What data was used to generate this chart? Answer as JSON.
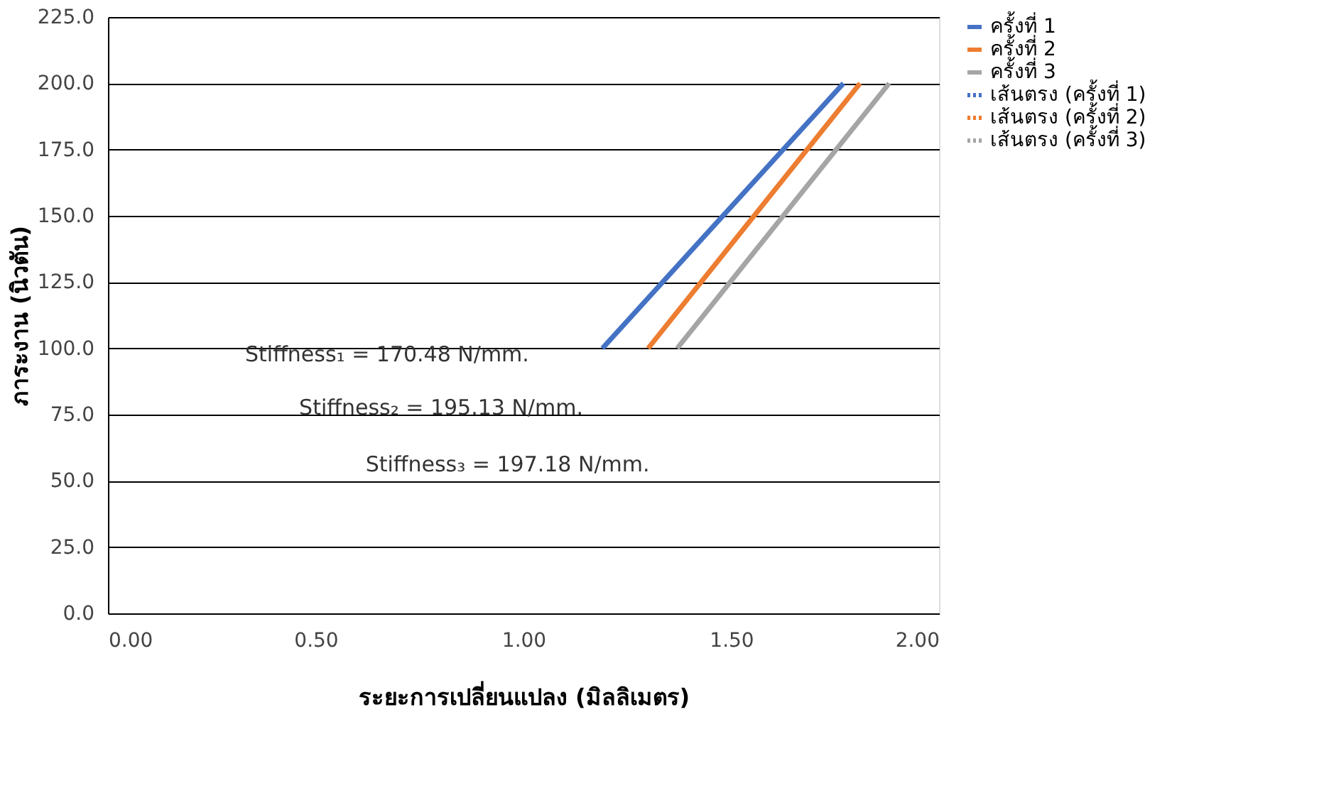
{
  "chart_data": {
    "type": "line",
    "xlabel": "ระยะการเปลี่ยนแปลง (มิลลิเมตร)",
    "ylabel": "ภาระงาน (นิวตัน)",
    "xlim": [
      0,
      2
    ],
    "xticks": [
      {
        "value": 0,
        "label": "0.00"
      },
      {
        "value": 0.5,
        "label": "0.50"
      },
      {
        "value": 1,
        "label": "1.00"
      },
      {
        "value": 1.5,
        "label": "1.50"
      },
      {
        "value": 2,
        "label": "2.00"
      }
    ],
    "ylim": [
      0,
      225
    ],
    "yticks": [
      {
        "value": 0,
        "label": "0.0"
      },
      {
        "value": 25,
        "label": "25.0"
      },
      {
        "value": 50,
        "label": "50.0"
      },
      {
        "value": 75,
        "label": "75.0"
      },
      {
        "value": 100,
        "label": "100.0"
      },
      {
        "value": 125,
        "label": "125.0"
      },
      {
        "value": 150,
        "label": "150.0"
      },
      {
        "value": 175,
        "label": "175.0"
      },
      {
        "value": 200,
        "label": "200.0"
      },
      {
        "value": 225,
        "label": "225.0"
      }
    ],
    "grid": "y",
    "legend": "right",
    "marker": "none",
    "series": [
      {
        "name": "ครั้งที่ 1",
        "color": "#4472c4",
        "x": [
          1.19,
          1.77
        ],
        "values": [
          100,
          200
        ],
        "line_style": "solid"
      },
      {
        "name": "ครั้งที่ 2",
        "color": "#ed7d31",
        "x": [
          1.3,
          1.81
        ],
        "values": [
          100,
          200
        ],
        "line_style": "solid"
      },
      {
        "name": "ครั้งที่ 3",
        "color": "#a5a5a5",
        "x": [
          1.37,
          1.88
        ],
        "values": [
          100,
          200
        ],
        "line_style": "solid"
      },
      {
        "name": "เส้นตรง (ครั้งที่ 1)",
        "color": "#4472c4",
        "values": [
          null,
          null
        ],
        "line_style": "dotted"
      },
      {
        "name": "เส้นตรง (ครั้งที่ 2)",
        "color": "#ed7d31",
        "values": [
          null,
          null
        ],
        "line_style": "dotted"
      },
      {
        "name": "เส้นตรง (ครั้งที่ 3)",
        "color": "#a5a5a5",
        "values": [
          null,
          null
        ],
        "line_style": "dotted"
      }
    ],
    "annotations": [
      "Stiffness₁ = 170.48 N/mm.",
      "Stiffness₂ = 195.13 N/mm.",
      "Stiffness₃ = 197.18 N/mm."
    ]
  }
}
